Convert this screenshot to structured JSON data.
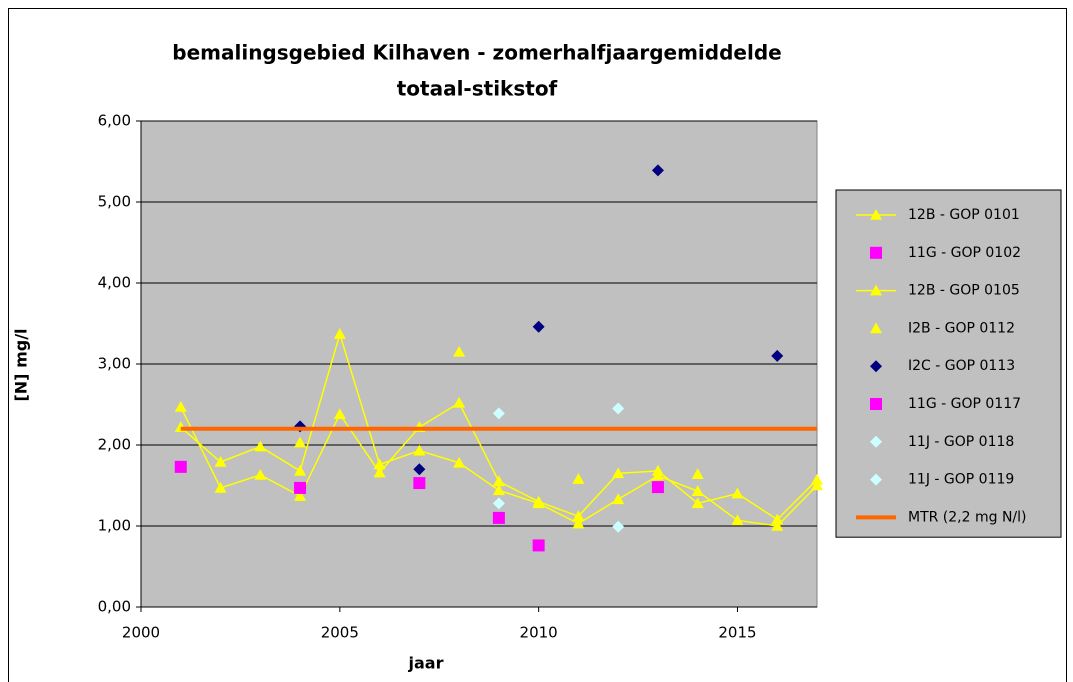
{
  "chart_data": {
    "type": "line",
    "title": "bemalingsgebied Kilhaven - zomerhalfjaargemiddelde",
    "subtitle": "totaal-stikstof",
    "x_label": "jaar",
    "y_label": "[N] mg/l",
    "xlim": [
      2000,
      2017
    ],
    "xticks": [
      2000,
      2005,
      2010,
      2015
    ],
    "ylim": [
      0,
      6
    ],
    "yticks": [
      {
        "value": 0,
        "label": "0,00"
      },
      {
        "value": 1,
        "label": "1,00"
      },
      {
        "value": 2,
        "label": "2,00"
      },
      {
        "value": 3,
        "label": "3,00"
      },
      {
        "value": 4,
        "label": "4,00"
      },
      {
        "value": 5,
        "label": "5,00"
      },
      {
        "value": 6,
        "label": "6,00"
      }
    ],
    "grid": true,
    "legend": "right",
    "series": [
      {
        "name": "12B - GOP 0101",
        "color": "#ffff00",
        "marker": "triangle",
        "line": true,
        "x": [
          2001,
          2002,
          2003,
          2004,
          2005,
          2006,
          2007,
          2008,
          2009,
          2010,
          2011,
          2012,
          2013,
          2014,
          2015,
          2016,
          2017
        ],
        "values": [
          2.47,
          1.47,
          1.63,
          1.37,
          2.38,
          1.66,
          2.22,
          2.52,
          1.55,
          1.3,
          1.12,
          1.65,
          1.68,
          1.28,
          1.4,
          1.08,
          1.57
        ]
      },
      {
        "name": "11G - GOP 0102",
        "color": "#ff00ff",
        "marker": "square",
        "line": false,
        "x": [
          2001,
          2004,
          2007
        ],
        "values": [
          1.73,
          1.47,
          1.53
        ]
      },
      {
        "name": "12B - GOP 0105",
        "color": "#ffff00",
        "marker": "triangle",
        "line": true,
        "x": [
          2001,
          2002,
          2003,
          2004,
          2005,
          2006,
          2007,
          2008,
          2009,
          2010,
          2011,
          2012,
          2013,
          2014,
          2015,
          2016,
          2017
        ],
        "values": [
          2.22,
          1.79,
          1.98,
          1.68,
          3.37,
          1.76,
          1.93,
          1.78,
          1.44,
          1.28,
          1.03,
          1.33,
          1.62,
          1.43,
          1.07,
          1.0,
          1.5
        ]
      },
      {
        "name": "I2B - GOP 0112",
        "color": "#ffff00",
        "marker": "triangle",
        "line": false,
        "x": [
          2004,
          2008,
          2011,
          2014
        ],
        "values": [
          2.03,
          3.15,
          1.58,
          1.64
        ]
      },
      {
        "name": "I2C - GOP 0113",
        "color": "#000080",
        "marker": "diamond",
        "line": false,
        "x": [
          2004,
          2007,
          2010,
          2013,
          2016
        ],
        "values": [
          2.23,
          1.7,
          3.46,
          5.39,
          3.1
        ]
      },
      {
        "name": "11G - GOP 0117",
        "color": "#ff00ff",
        "marker": "square",
        "line": false,
        "x": [
          2009,
          2010,
          2013
        ],
        "values": [
          1.1,
          0.76,
          1.48
        ]
      },
      {
        "name": "11J - GOP 0118",
        "color": "#ccffff",
        "marker": "diamond",
        "line": false,
        "x": [
          2009,
          2012
        ],
        "values": [
          2.39,
          2.45
        ]
      },
      {
        "name": "11J - GOP 0119",
        "color": "#ccffff",
        "marker": "diamond",
        "line": false,
        "x": [
          2009,
          2012
        ],
        "values": [
          1.28,
          0.99
        ]
      },
      {
        "name": "MTR (2,2 mg N/l)",
        "color": "#ff6600",
        "marker": "none",
        "line": true,
        "width": 4,
        "x": [
          2001,
          2017
        ],
        "values": [
          2.2,
          2.2
        ]
      }
    ]
  }
}
